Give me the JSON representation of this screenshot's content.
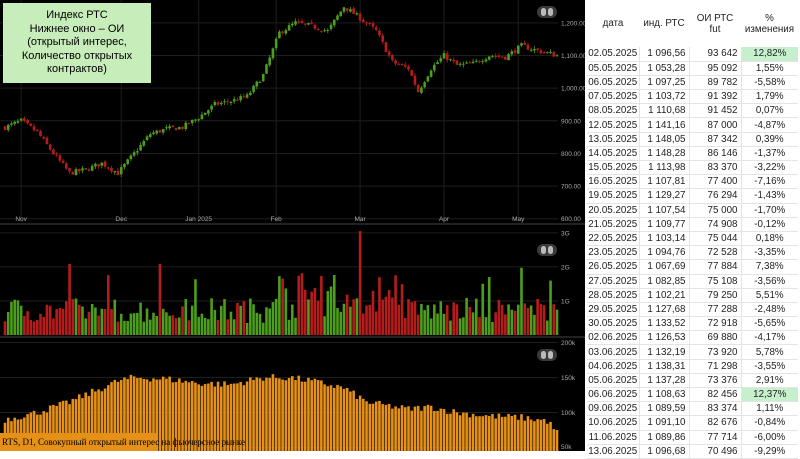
{
  "legend": {
    "lines": [
      "Индекс РТС",
      "Нижнее окно – ОИ",
      "(открытый интерес,",
      "Количество открытых",
      "контрактов)"
    ]
  },
  "footer": {
    "label": "RTS, D1, Совокупный открытый интерес на фьючерсное рынке"
  },
  "colors": {
    "up": "#4c9e1b",
    "down": "#b71c1c",
    "oi": "#e59016",
    "highlight": "#c6efce",
    "background": "#000000"
  },
  "chart_data": [
    {
      "type": "candlestick",
      "name": "price",
      "x_ticks": [
        "Nov",
        "Dec",
        "Jan 2025",
        "Feb",
        "Mar",
        "Apr",
        "May"
      ],
      "x_tick_index": [
        5,
        36,
        60,
        84,
        110,
        136,
        159
      ],
      "y_ticks": [
        "1,200.00",
        "1,100.00",
        "1,000.00",
        "900.00",
        "800.00",
        "700.00",
        "600.00"
      ],
      "y_tick_values": [
        1200,
        1100,
        1000,
        900,
        800,
        700,
        600
      ],
      "ylim": [
        590,
        1270
      ],
      "close_waypoints": [
        [
          0,
          880
        ],
        [
          5,
          900
        ],
        [
          10,
          865
        ],
        [
          15,
          800
        ],
        [
          20,
          740
        ],
        [
          25,
          750
        ],
        [
          30,
          770
        ],
        [
          35,
          740
        ],
        [
          40,
          800
        ],
        [
          45,
          860
        ],
        [
          50,
          875
        ],
        [
          55,
          880
        ],
        [
          60,
          910
        ],
        [
          65,
          950
        ],
        [
          70,
          960
        ],
        [
          75,
          975
        ],
        [
          80,
          1040
        ],
        [
          85,
          1170
        ],
        [
          90,
          1200
        ],
        [
          95,
          1190
        ],
        [
          100,
          1175
        ],
        [
          105,
          1250
        ],
        [
          110,
          1215
        ],
        [
          115,
          1175
        ],
        [
          120,
          1080
        ],
        [
          125,
          1060
        ],
        [
          128,
          990
        ],
        [
          132,
          1060
        ],
        [
          136,
          1100
        ],
        [
          140,
          1070
        ],
        [
          145,
          1075
        ],
        [
          150,
          1100
        ],
        [
          155,
          1095
        ],
        [
          160,
          1130
        ],
        [
          165,
          1115
        ],
        [
          171,
          1100
        ]
      ]
    },
    {
      "type": "bar",
      "name": "volume",
      "y_ticks": [
        "3G",
        "2G",
        "1G"
      ],
      "y_tick_values": [
        3,
        2,
        1
      ],
      "ylim": [
        0,
        3.2
      ]
    },
    {
      "type": "bar",
      "name": "open-interest",
      "y_ticks": [
        "200k",
        "150k",
        "100k",
        "50k"
      ],
      "y_tick_values": [
        200,
        150,
        100,
        50
      ],
      "ylim": [
        45,
        205
      ],
      "values_waypoints": [
        [
          0,
          90
        ],
        [
          10,
          100
        ],
        [
          20,
          115
        ],
        [
          30,
          135
        ],
        [
          35,
          145
        ],
        [
          40,
          150
        ],
        [
          50,
          148
        ],
        [
          60,
          142
        ],
        [
          70,
          140
        ],
        [
          80,
          150
        ],
        [
          88,
          150
        ],
        [
          95,
          145
        ],
        [
          105,
          135
        ],
        [
          112,
          115
        ],
        [
          118,
          110
        ],
        [
          125,
          105
        ],
        [
          132,
          108
        ],
        [
          140,
          100
        ],
        [
          150,
          95
        ],
        [
          160,
          93
        ],
        [
          168,
          88
        ],
        [
          171,
          72
        ]
      ]
    }
  ],
  "table": {
    "headers": {
      "date": "дата",
      "index": "инд. РТС",
      "oi_line1": "ОИ РТС",
      "oi_line2": "fut",
      "pct_line1": "%",
      "pct_line2": "изменения"
    },
    "rows": [
      {
        "date": "02.05.2025",
        "index": "1 096,56",
        "oi": "93 642",
        "pct": "12,82%",
        "hl": true
      },
      {
        "date": "05.05.2025",
        "index": "1 053,28",
        "oi": "95 092",
        "pct": "1,55%"
      },
      {
        "date": "06.05.2025",
        "index": "1 097,25",
        "oi": "89 782",
        "pct": "-5,58%"
      },
      {
        "date": "07.05.2025",
        "index": "1 103,72",
        "oi": "91 392",
        "pct": "1,79%"
      },
      {
        "date": "08.05.2025",
        "index": "1 110,68",
        "oi": "91 452",
        "pct": "0,07%"
      },
      {
        "date": "12.05.2025",
        "index": "1 141,16",
        "oi": "87 000",
        "pct": "-4,87%"
      },
      {
        "date": "13.05.2025",
        "index": "1 148,05",
        "oi": "87 342",
        "pct": "0,39%"
      },
      {
        "date": "14.05.2025",
        "index": "1 148,28",
        "oi": "86 146",
        "pct": "-1,37%"
      },
      {
        "date": "15.05.2025",
        "index": "1 113,98",
        "oi": "83 370",
        "pct": "-3,22%"
      },
      {
        "date": "16.05.2025",
        "index": "1 107,81",
        "oi": "77 400",
        "pct": "-7,16%"
      },
      {
        "date": "19.05.2025",
        "index": "1 129,27",
        "oi": "76 294",
        "pct": "-1,43%"
      },
      {
        "date": "20.05.2025",
        "index": "1 107,54",
        "oi": "75 000",
        "pct": "-1,70%"
      },
      {
        "date": "21.05.2025",
        "index": "1 109,77",
        "oi": "74 908",
        "pct": "-0,12%"
      },
      {
        "date": "22.05.2025",
        "index": "1 103,14",
        "oi": "75 044",
        "pct": "0,18%"
      },
      {
        "date": "23.05.2025",
        "index": "1 094,76",
        "oi": "72 528",
        "pct": "-3,35%"
      },
      {
        "date": "26.05.2025",
        "index": "1 067,69",
        "oi": "77 884",
        "pct": "7,38%"
      },
      {
        "date": "27.05.2025",
        "index": "1 082,85",
        "oi": "75 108",
        "pct": "-3,56%"
      },
      {
        "date": "28.05.2025",
        "index": "1 102,21",
        "oi": "79 250",
        "pct": "5,51%"
      },
      {
        "date": "29.05.2025",
        "index": "1 127,68",
        "oi": "77 288",
        "pct": "-2,48%"
      },
      {
        "date": "30.05.2025",
        "index": "1 133,52",
        "oi": "72 918",
        "pct": "-5,65%"
      },
      {
        "date": "02.06.2025",
        "index": "1 126,53",
        "oi": "69 880",
        "pct": "-4,17%"
      },
      {
        "date": "03.06.2025",
        "index": "1 132,19",
        "oi": "73 920",
        "pct": "5,78%"
      },
      {
        "date": "04.06.2025",
        "index": "1 138,31",
        "oi": "71 298",
        "pct": "-3,55%"
      },
      {
        "date": "05.06.2025",
        "index": "1 137,28",
        "oi": "73 376",
        "pct": "2,91%"
      },
      {
        "date": "06.06.2025",
        "index": "1 108,63",
        "oi": "82 456",
        "pct": "12,37%",
        "hl": true
      },
      {
        "date": "09.06.2025",
        "index": "1 089,59",
        "oi": "83 374",
        "pct": "1,11%"
      },
      {
        "date": "10.06.2025",
        "index": "1 091,10",
        "oi": "82 676",
        "pct": "-0,84%"
      },
      {
        "date": "11.06.2025",
        "index": "1 089,86",
        "oi": "77 714",
        "pct": "-6,00%"
      },
      {
        "date": "13.06.2025",
        "index": "1 096,68",
        "oi": "70 496",
        "pct": "-9,29%"
      }
    ]
  }
}
